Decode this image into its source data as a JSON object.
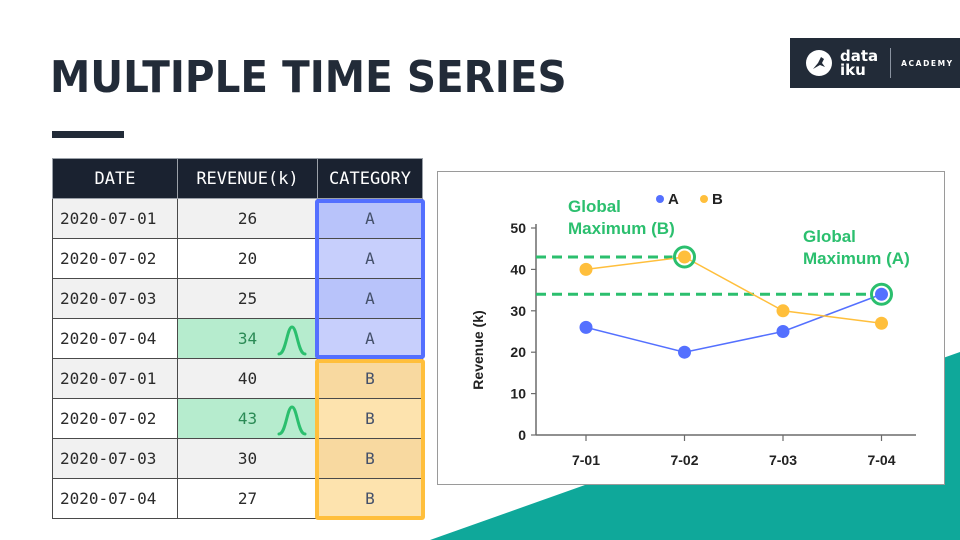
{
  "slide": {
    "title": "MULTIPLE TIME SERIES",
    "logo": {
      "word_top": "data",
      "word_bottom": "iku",
      "subtitle": "ACADEMY"
    }
  },
  "colors": {
    "dark": "#222b38",
    "teal": "#0fa89a",
    "series_a": "#5470ff",
    "series_b": "#ffbf3c",
    "highlight_green": "#2bbf6e",
    "cat_a_fill": "#c7cffc",
    "cat_b_fill": "#fde3ae",
    "peak_fill": "#b6ecce"
  },
  "table": {
    "headers": [
      "DATE",
      "REVENUE(k)",
      "CATEGORY"
    ],
    "rows": [
      {
        "date": "2020-07-01",
        "revenue": "26",
        "category": "A",
        "peak": false
      },
      {
        "date": "2020-07-02",
        "revenue": "20",
        "category": "A",
        "peak": false
      },
      {
        "date": "2020-07-03",
        "revenue": "25",
        "category": "A",
        "peak": false
      },
      {
        "date": "2020-07-04",
        "revenue": "34",
        "category": "A",
        "peak": true
      },
      {
        "date": "2020-07-01",
        "revenue": "40",
        "category": "B",
        "peak": false
      },
      {
        "date": "2020-07-02",
        "revenue": "43",
        "category": "B",
        "peak": true
      },
      {
        "date": "2020-07-03",
        "revenue": "30",
        "category": "B",
        "peak": false
      },
      {
        "date": "2020-07-04",
        "revenue": "27",
        "category": "B",
        "peak": false
      }
    ]
  },
  "chart_data": {
    "type": "line",
    "categories": [
      "7-01",
      "7-02",
      "7-03",
      "7-04"
    ],
    "series": [
      {
        "name": "A",
        "values": [
          26,
          20,
          25,
          34
        ],
        "color": "#5470ff"
      },
      {
        "name": "B",
        "values": [
          40,
          43,
          30,
          27
        ],
        "color": "#ffbf3c"
      }
    ],
    "ylabel": "Revenue (k)",
    "ylim": [
      0,
      50
    ],
    "yticks": [
      0,
      10,
      20,
      30,
      40,
      50
    ],
    "legend_position": "top",
    "grid": false,
    "annotations": [
      {
        "text_line1": "Global",
        "text_line2": "Maximum (B)",
        "series": "B",
        "category": "7-02",
        "value": 43
      },
      {
        "text_line1": "Global",
        "text_line2": "Maximum (A)",
        "series": "A",
        "category": "7-04",
        "value": 34
      }
    ]
  }
}
